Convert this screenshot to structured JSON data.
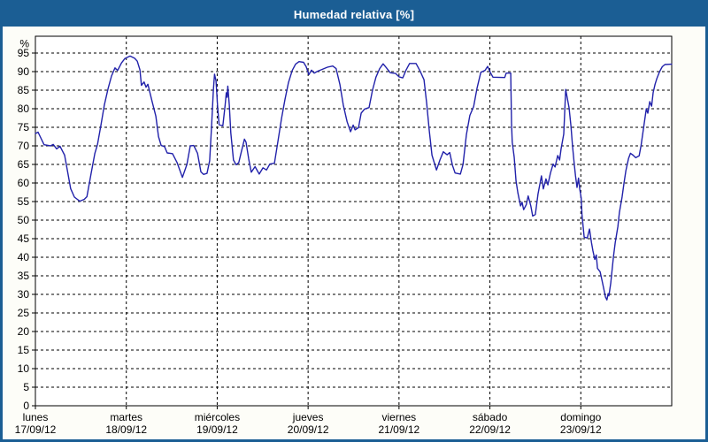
{
  "window": {
    "title": "Humedad relativa [%]"
  },
  "colors": {
    "titlebar_bg": "#1b5e94",
    "window_border": "#1b5e94",
    "title_text": "#ffffff",
    "line": "#2121aa",
    "grid": "#000000",
    "axis": "#000000",
    "plot_bg": "#ffffff",
    "label_text": "#000000"
  },
  "chart_data": {
    "type": "line",
    "title": "Humedad relativa [%]",
    "ylabel": "%",
    "ylim": [
      0,
      99.5
    ],
    "yticks": [
      0,
      5,
      10,
      15,
      20,
      25,
      30,
      35,
      40,
      45,
      50,
      55,
      60,
      65,
      70,
      75,
      80,
      85,
      90,
      95
    ],
    "grid": "dashed horizontal at yticks, dashed vertical at day boundaries",
    "legend_position": "none",
    "x_axis": {
      "hours_total": 168,
      "days": [
        {
          "name": "lunes",
          "date": "17/09/12"
        },
        {
          "name": "martes",
          "date": "18/09/12"
        },
        {
          "name": "miércoles",
          "date": "19/09/12"
        },
        {
          "name": "jueves",
          "date": "20/09/12"
        },
        {
          "name": "viernes",
          "date": "21/09/12"
        },
        {
          "name": "sábado",
          "date": "22/09/12"
        },
        {
          "name": "domingo",
          "date": "23/09/12"
        }
      ]
    },
    "series": [
      {
        "name": "Humedad relativa [%]",
        "color": "#2121aa",
        "points_hours_value": [
          [
            0,
            73.3
          ],
          [
            0.7,
            73.7
          ],
          [
            2.3,
            70.3
          ],
          [
            4,
            70
          ],
          [
            4.7,
            70.4
          ],
          [
            5.6,
            69.2
          ],
          [
            6.5,
            69.9
          ],
          [
            7.7,
            67.5
          ],
          [
            8.6,
            62.5
          ],
          [
            9.3,
            58.5
          ],
          [
            10.3,
            56.2
          ],
          [
            11.7,
            55.1
          ],
          [
            12.9,
            55.6
          ],
          [
            13.6,
            56.3
          ],
          [
            14.7,
            62.5
          ],
          [
            15.7,
            68
          ],
          [
            16.4,
            70.4
          ],
          [
            17.3,
            75.5
          ],
          [
            18.2,
            81
          ],
          [
            19.2,
            85.5
          ],
          [
            20.1,
            88.8
          ],
          [
            21,
            91
          ],
          [
            21.7,
            90.3
          ],
          [
            22.7,
            92.3
          ],
          [
            23.6,
            93.5
          ],
          [
            25,
            94.2
          ],
          [
            26.2,
            93.6
          ],
          [
            26.9,
            92.8
          ],
          [
            27.6,
            90.5
          ],
          [
            28,
            86.3
          ],
          [
            28.7,
            87.2
          ],
          [
            29.2,
            85.8
          ],
          [
            29.7,
            86.6
          ],
          [
            30.8,
            82
          ],
          [
            31.8,
            78
          ],
          [
            32.5,
            72.5
          ],
          [
            33.2,
            70.1
          ],
          [
            34.1,
            69.8
          ],
          [
            34.8,
            68.1
          ],
          [
            36.2,
            67.9
          ],
          [
            37.4,
            65.5
          ],
          [
            38.8,
            61.5
          ],
          [
            40,
            65
          ],
          [
            40.9,
            70
          ],
          [
            41.8,
            70.1
          ],
          [
            42.8,
            68
          ],
          [
            43.7,
            63
          ],
          [
            44.4,
            62.3
          ],
          [
            45.3,
            62.6
          ],
          [
            46,
            66
          ],
          [
            46.5,
            75
          ],
          [
            47,
            85
          ],
          [
            47.3,
            89.3
          ],
          [
            47.7,
            87.5
          ],
          [
            48.1,
            80.5
          ],
          [
            48.5,
            75.7
          ],
          [
            49.5,
            75.4
          ],
          [
            50.1,
            81
          ],
          [
            50.4,
            84.3
          ],
          [
            50.6,
            83.1
          ],
          [
            50.8,
            86.1
          ],
          [
            51.2,
            81
          ],
          [
            51.6,
            73.5
          ],
          [
            52.3,
            66.2
          ],
          [
            53,
            64.9
          ],
          [
            53.7,
            65.5
          ],
          [
            54.4,
            68.5
          ],
          [
            55.2,
            71.8
          ],
          [
            55.6,
            71
          ],
          [
            56.3,
            66.5
          ],
          [
            57,
            62.9
          ],
          [
            58,
            64.4
          ],
          [
            59.1,
            62.4
          ],
          [
            60.1,
            64.1
          ],
          [
            61,
            63.5
          ],
          [
            61.9,
            65.1
          ],
          [
            63.1,
            65.3
          ],
          [
            64,
            71
          ],
          [
            65,
            77.5
          ],
          [
            65.9,
            82.5
          ],
          [
            66.8,
            87
          ],
          [
            67.8,
            90.3
          ],
          [
            68.7,
            92
          ],
          [
            69.6,
            92.7
          ],
          [
            70.8,
            92.5
          ],
          [
            71.5,
            91.3
          ],
          [
            72.2,
            89.2
          ],
          [
            72.9,
            90.4
          ],
          [
            73.6,
            89.6
          ],
          [
            74.5,
            90.1
          ],
          [
            75.7,
            90.6
          ],
          [
            77.1,
            91.2
          ],
          [
            78.5,
            91.5
          ],
          [
            79.4,
            90.8
          ],
          [
            80.4,
            86.5
          ],
          [
            81.3,
            81
          ],
          [
            82.3,
            76.5
          ],
          [
            83.2,
            73.8
          ],
          [
            83.9,
            75.6
          ],
          [
            84.4,
            74.3
          ],
          [
            85.3,
            74.9
          ],
          [
            86,
            78.8
          ],
          [
            86.9,
            79.9
          ],
          [
            88.1,
            80.3
          ],
          [
            89,
            85
          ],
          [
            89.9,
            88.5
          ],
          [
            90.9,
            90.8
          ],
          [
            91.8,
            92.1
          ],
          [
            92.7,
            91
          ],
          [
            93.7,
            89.7
          ],
          [
            95.1,
            89.5
          ],
          [
            96,
            88.6
          ],
          [
            97,
            88.3
          ],
          [
            97.9,
            90.5
          ],
          [
            98.8,
            92.2
          ],
          [
            100.5,
            92.2
          ],
          [
            101.6,
            90.1
          ],
          [
            102.6,
            87.8
          ],
          [
            103.3,
            81.5
          ],
          [
            104,
            74
          ],
          [
            104.7,
            67.5
          ],
          [
            105.9,
            63.5
          ],
          [
            106.8,
            66.2
          ],
          [
            107.7,
            68.4
          ],
          [
            108.7,
            67.6
          ],
          [
            109.4,
            68.2
          ],
          [
            110.1,
            64.8
          ],
          [
            110.8,
            62.7
          ],
          [
            112.2,
            62.4
          ],
          [
            112.9,
            65
          ],
          [
            113.8,
            73
          ],
          [
            114.7,
            78.2
          ],
          [
            115.7,
            80.6
          ],
          [
            116.6,
            85.5
          ],
          [
            117.6,
            89.8
          ],
          [
            118.7,
            90.3
          ],
          [
            119.4,
            91.4
          ],
          [
            120.1,
            89.8
          ],
          [
            120.8,
            88.5
          ],
          [
            123.9,
            88.4
          ],
          [
            124.3,
            89.6
          ],
          [
            125.5,
            89.6
          ],
          [
            125.7,
            76
          ],
          [
            125.9,
            71
          ],
          [
            126.4,
            67
          ],
          [
            126.9,
            60.5
          ],
          [
            127.4,
            57.3
          ],
          [
            128.1,
            53.8
          ],
          [
            128.5,
            54.8
          ],
          [
            128.9,
            52.8
          ],
          [
            129.6,
            54.2
          ],
          [
            130.1,
            56.5
          ],
          [
            130.8,
            53.8
          ],
          [
            131.3,
            51.1
          ],
          [
            132,
            51.5
          ],
          [
            132.7,
            57
          ],
          [
            133.6,
            61.9
          ],
          [
            134.1,
            58.4
          ],
          [
            134.8,
            61.1
          ],
          [
            135.3,
            59.5
          ],
          [
            136,
            62.7
          ],
          [
            136.7,
            65.1
          ],
          [
            137.2,
            64.3
          ],
          [
            137.9,
            67.4
          ],
          [
            138.4,
            66.2
          ],
          [
            138.8,
            69.2
          ],
          [
            139.5,
            73.2
          ],
          [
            140,
            85.2
          ],
          [
            140.9,
            80.3
          ],
          [
            141.4,
            75.2
          ],
          [
            141.8,
            70
          ],
          [
            142.3,
            64.8
          ],
          [
            142.6,
            61.9
          ],
          [
            143,
            58.8
          ],
          [
            143.4,
            61.3
          ],
          [
            143.7,
            58.5
          ],
          [
            144.1,
            56
          ],
          [
            144.3,
            51.5
          ],
          [
            144.7,
            47.3
          ],
          [
            144.9,
            45.4
          ],
          [
            145.7,
            45.2
          ],
          [
            146.3,
            47.6
          ],
          [
            146.8,
            44
          ],
          [
            147.2,
            41.7
          ],
          [
            147.7,
            39.4
          ],
          [
            148.1,
            40.6
          ],
          [
            148.4,
            37
          ],
          [
            149.1,
            36.1
          ],
          [
            149.6,
            33.7
          ],
          [
            150.1,
            31.3
          ],
          [
            150.5,
            29.3
          ],
          [
            150.9,
            28.5
          ],
          [
            151.2,
            30.2
          ],
          [
            151.4,
            29.6
          ],
          [
            151.9,
            33
          ],
          [
            152.6,
            40
          ],
          [
            153.1,
            44
          ],
          [
            153.8,
            48.3
          ],
          [
            154.2,
            52.1
          ],
          [
            154.9,
            56.2
          ],
          [
            155.4,
            60
          ],
          [
            155.9,
            63.3
          ],
          [
            156.6,
            66.6
          ],
          [
            157.1,
            68
          ],
          [
            157.8,
            67.5
          ],
          [
            158.5,
            66.8
          ],
          [
            159.4,
            67.3
          ],
          [
            159.9,
            70
          ],
          [
            160.6,
            75
          ],
          [
            161.3,
            80
          ],
          [
            161.7,
            78.8
          ],
          [
            162.2,
            81.9
          ],
          [
            162.7,
            80.7
          ],
          [
            163.1,
            84.3
          ],
          [
            163.6,
            86.6
          ],
          [
            164.1,
            88.2
          ],
          [
            164.8,
            90
          ],
          [
            165.5,
            91.3
          ],
          [
            166.2,
            91.9
          ],
          [
            168,
            92
          ]
        ]
      }
    ]
  }
}
